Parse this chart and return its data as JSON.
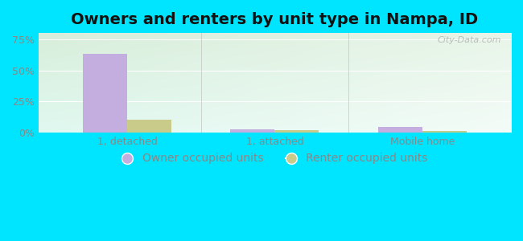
{
  "title": "Owners and renters by unit type in Nampa, ID",
  "categories": [
    "1, detached",
    "1, attached",
    "Mobile home"
  ],
  "owner_values": [
    63,
    2.5,
    4.5
  ],
  "renter_values": [
    10,
    2.2,
    1.2
  ],
  "owner_color": "#c4aee0",
  "renter_color": "#c8cb8a",
  "yticks": [
    0,
    25,
    50,
    75
  ],
  "ytick_labels": [
    "0%",
    "25%",
    "50%",
    "75%"
  ],
  "ylim": [
    0,
    80
  ],
  "bar_width": 0.3,
  "bg_color_topleft": "#d8eeda",
  "bg_color_topright": "#e8f5e8",
  "bg_color_bottomleft": "#e0f5ee",
  "bg_color_bottomright": "#f0faf5",
  "outer_bg": "#00e5ff",
  "watermark": "City-Data.com",
  "legend_labels": [
    "Owner occupied units",
    "Renter occupied units"
  ],
  "title_fontsize": 14,
  "axis_fontsize": 9,
  "legend_fontsize": 10,
  "tick_color": "#888888",
  "divider_color": "#bbbbbb"
}
